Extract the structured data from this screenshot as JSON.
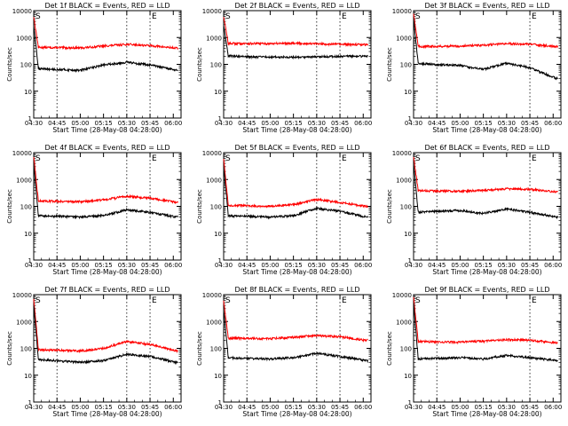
{
  "chart_data": {
    "type": "line",
    "y_scale": "log",
    "ylim": [
      1,
      10000
    ],
    "y_ticks": [
      1,
      10,
      100,
      1000,
      10000
    ],
    "ylabel": "Counts/sec",
    "x_tick_labels": [
      "04:30",
      "04:45",
      "05:00",
      "05:15",
      "05:30",
      "05:45",
      "06:00"
    ],
    "xlabels": [
      "Start Time (28-May-08 04:28:00)",
      "Start Time (28-May-08 04:28:00)",
      "Start Time (28-May-08 04:28:00)",
      "Start Time (28-May-08 04:28:00)",
      "Start Time (28-May-08 04:28:00)",
      "Start Time (28-May-08 04:28:00)",
      "Start Time (28-May-08 04:28:00)",
      "Start Time (28-May-08 04:28:00)",
      "Start Time (28-May-08 04:28:00)"
    ],
    "series_colors": {
      "events": "#000000",
      "lld": "#ff0000"
    },
    "panels": [
      {
        "title": "Det 1f BLACK = Events, RED = LLD",
        "markers": [
          "S",
          "E"
        ],
        "dotted_lines_min": [
          15,
          60,
          75
        ],
        "events": {
          "start": 3000,
          "plateau": 70,
          "profile": [
            [
              0,
              70
            ],
            [
              30,
              60
            ],
            [
              45,
              95
            ],
            [
              60,
              120
            ],
            [
              75,
              95
            ],
            [
              92,
              60
            ]
          ]
        },
        "lld": {
          "start": 6000,
          "plateau": 420,
          "profile": [
            [
              0,
              430
            ],
            [
              30,
              410
            ],
            [
              45,
              480
            ],
            [
              60,
              560
            ],
            [
              75,
              500
            ],
            [
              92,
              400
            ]
          ]
        }
      },
      {
        "title": "Det 2f BLACK = Events, RED = LLD",
        "markers": [
          "S",
          "E"
        ],
        "dotted_lines_min": [
          15,
          60,
          75
        ],
        "events": {
          "start": 3000,
          "plateau": 210,
          "profile": [
            [
              0,
              210
            ],
            [
              20,
              190
            ],
            [
              40,
              185
            ],
            [
              60,
              190
            ],
            [
              75,
              200
            ],
            [
              92,
              200
            ]
          ]
        },
        "lld": {
          "start": 6000,
          "plateau": 600,
          "profile": [
            [
              0,
              600
            ],
            [
              30,
              590
            ],
            [
              45,
              620
            ],
            [
              60,
              580
            ],
            [
              75,
              560
            ],
            [
              92,
              540
            ]
          ]
        }
      },
      {
        "title": "Det 3f BLACK = Events, RED = LLD",
        "markers": [
          "S",
          "E"
        ],
        "dotted_lines_min": [
          0,
          15,
          75
        ],
        "events": {
          "start": 5000,
          "plateau": 110,
          "profile": [
            [
              0,
              110
            ],
            [
              30,
              90
            ],
            [
              45,
              65
            ],
            [
              60,
              110
            ],
            [
              75,
              75
            ],
            [
              92,
              30
            ]
          ]
        },
        "lld": {
          "start": 8000,
          "plateau": 450,
          "profile": [
            [
              0,
              460
            ],
            [
              30,
              480
            ],
            [
              45,
              520
            ],
            [
              60,
              600
            ],
            [
              75,
              560
            ],
            [
              92,
              460
            ]
          ]
        }
      },
      {
        "title": "Det 4f BLACK = Events, RED = LLD",
        "markers": [
          "S",
          "E"
        ],
        "dotted_lines_min": [
          15,
          60,
          75
        ],
        "events": {
          "start": 4000,
          "plateau": 45,
          "profile": [
            [
              0,
              45
            ],
            [
              30,
              40
            ],
            [
              45,
              45
            ],
            [
              60,
              75
            ],
            [
              75,
              60
            ],
            [
              92,
              40
            ]
          ]
        },
        "lld": {
          "start": 7000,
          "plateau": 160,
          "profile": [
            [
              0,
              160
            ],
            [
              30,
              150
            ],
            [
              45,
              175
            ],
            [
              60,
              240
            ],
            [
              75,
              200
            ],
            [
              92,
              140
            ]
          ]
        }
      },
      {
        "title": "Det 5f BLACK = Events, RED = LLD",
        "markers": [
          "S",
          "E"
        ],
        "dotted_lines_min": [
          15,
          60,
          75
        ],
        "events": {
          "start": 3000,
          "plateau": 45,
          "profile": [
            [
              0,
              45
            ],
            [
              30,
              40
            ],
            [
              45,
              45
            ],
            [
              60,
              85
            ],
            [
              75,
              65
            ],
            [
              92,
              40
            ]
          ]
        },
        "lld": {
          "start": 6000,
          "plateau": 110,
          "profile": [
            [
              0,
              110
            ],
            [
              30,
              100
            ],
            [
              45,
              115
            ],
            [
              60,
              180
            ],
            [
              75,
              140
            ],
            [
              92,
              100
            ]
          ]
        }
      },
      {
        "title": "Det 6f BLACK = Events, RED = LLD",
        "markers": [
          "S",
          "E"
        ],
        "dotted_lines_min": [
          0,
          15,
          75
        ],
        "events": {
          "start": 4000,
          "plateau": 60,
          "profile": [
            [
              0,
              60
            ],
            [
              30,
              70
            ],
            [
              45,
              55
            ],
            [
              60,
              80
            ],
            [
              75,
              60
            ],
            [
              92,
              40
            ]
          ]
        },
        "lld": {
          "start": 7000,
          "plateau": 380,
          "profile": [
            [
              0,
              380
            ],
            [
              30,
              370
            ],
            [
              45,
              390
            ],
            [
              60,
              450
            ],
            [
              75,
              430
            ],
            [
              92,
              340
            ]
          ]
        }
      },
      {
        "title": "Det 7f BLACK = Events, RED = LLD",
        "markers": [
          "S",
          "E"
        ],
        "dotted_lines_min": [
          15,
          60,
          75
        ],
        "events": {
          "start": 4000,
          "plateau": 40,
          "profile": [
            [
              0,
              40
            ],
            [
              30,
              30
            ],
            [
              45,
              35
            ],
            [
              60,
              60
            ],
            [
              75,
              50
            ],
            [
              92,
              30
            ]
          ]
        },
        "lld": {
          "start": 7000,
          "plateau": 90,
          "profile": [
            [
              0,
              90
            ],
            [
              30,
              80
            ],
            [
              45,
              100
            ],
            [
              60,
              180
            ],
            [
              75,
              140
            ],
            [
              92,
              80
            ]
          ]
        }
      },
      {
        "title": "Det 8f BLACK = Events, RED = LLD",
        "markers": [
          "S",
          "E"
        ],
        "dotted_lines_min": [
          15,
          60,
          75
        ],
        "events": {
          "start": 3000,
          "plateau": 45,
          "profile": [
            [
              0,
              45
            ],
            [
              30,
              40
            ],
            [
              45,
              45
            ],
            [
              60,
              65
            ],
            [
              75,
              50
            ],
            [
              92,
              35
            ]
          ]
        },
        "lld": {
          "start": 6000,
          "plateau": 240,
          "profile": [
            [
              0,
              240
            ],
            [
              30,
              230
            ],
            [
              45,
              260
            ],
            [
              60,
              300
            ],
            [
              75,
              270
            ],
            [
              92,
              200
            ]
          ]
        }
      },
      {
        "title": "Det 9f BLACK = Events, RED = LLD",
        "markers": [
          "S",
          "E"
        ],
        "dotted_lines_min": [
          0,
          15,
          75
        ],
        "events": {
          "start": 5000,
          "plateau": 40,
          "profile": [
            [
              0,
              40
            ],
            [
              30,
              45
            ],
            [
              45,
              40
            ],
            [
              60,
              55
            ],
            [
              75,
              45
            ],
            [
              92,
              35
            ]
          ]
        },
        "lld": {
          "start": 8000,
          "plateau": 180,
          "profile": [
            [
              0,
              180
            ],
            [
              30,
              170
            ],
            [
              45,
              185
            ],
            [
              60,
              210
            ],
            [
              75,
              200
            ],
            [
              92,
              160
            ]
          ]
        }
      }
    ]
  }
}
